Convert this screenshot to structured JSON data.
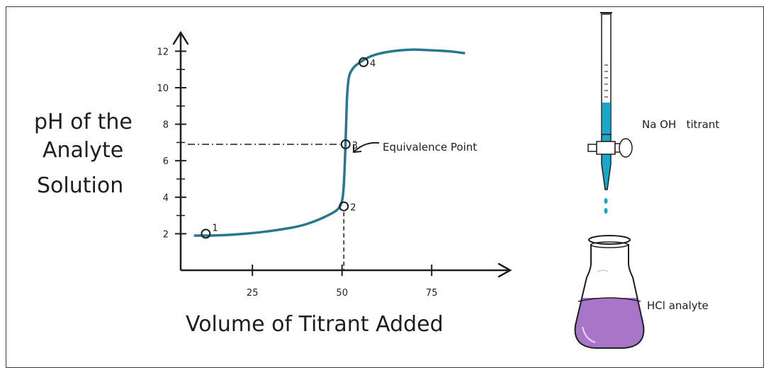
{
  "chart_data": {
    "type": "line",
    "ylabel": "pH of the Analyte Solution",
    "xlabel": "Volume of Titrant Added",
    "xlim": [
      5,
      95
    ],
    "ylim": [
      0,
      14
    ],
    "x_ticks": [
      {
        "value": 25,
        "label": "25"
      },
      {
        "value": 50,
        "label": "50"
      },
      {
        "value": 75,
        "label": "75"
      }
    ],
    "y_ticks": [
      {
        "value": 2,
        "label": "2"
      },
      {
        "value": 4,
        "label": "4"
      },
      {
        "value": 6,
        "label": "6"
      },
      {
        "value": 8,
        "label": "8"
      },
      {
        "value": 10,
        "label": "10"
      },
      {
        "value": 12,
        "label": "12"
      }
    ],
    "y_minor_ticks": [
      3,
      5,
      7,
      9,
      11
    ],
    "series": [
      {
        "color": "#27788f",
        "x": [
          9,
          14,
          20,
          26,
          32,
          38,
          42,
          45,
          47.5,
          49,
          50,
          50.5,
          51,
          51.5,
          53,
          55,
          58,
          62,
          66,
          70,
          75,
          80,
          84
        ],
        "y": [
          1.9,
          1.9,
          1.95,
          2.05,
          2.2,
          2.4,
          2.65,
          2.9,
          3.15,
          3.35,
          3.7,
          4.5,
          7,
          10.5,
          11.1,
          11.4,
          11.75,
          11.95,
          12.05,
          12.1,
          12.05,
          12.0,
          11.9
        ]
      }
    ],
    "points": [
      {
        "x": 12,
        "y": 2.0,
        "label": "1"
      },
      {
        "x": 50.5,
        "y": 3.5,
        "label": "2"
      },
      {
        "x": 51,
        "y": 6.9,
        "label": "3"
      },
      {
        "x": 56,
        "y": 11.4,
        "label": "4"
      }
    ],
    "annotations": {
      "equivalence_label": "Equivalence Point",
      "equivalence_x": 51,
      "equivalence_y": 6.9
    }
  },
  "apparatus": {
    "burette_label": "Na OH   titrant",
    "flask_label": "HCl analyte",
    "titrant_color": "#1aa7c9",
    "analyte_color": "#a875c9"
  }
}
